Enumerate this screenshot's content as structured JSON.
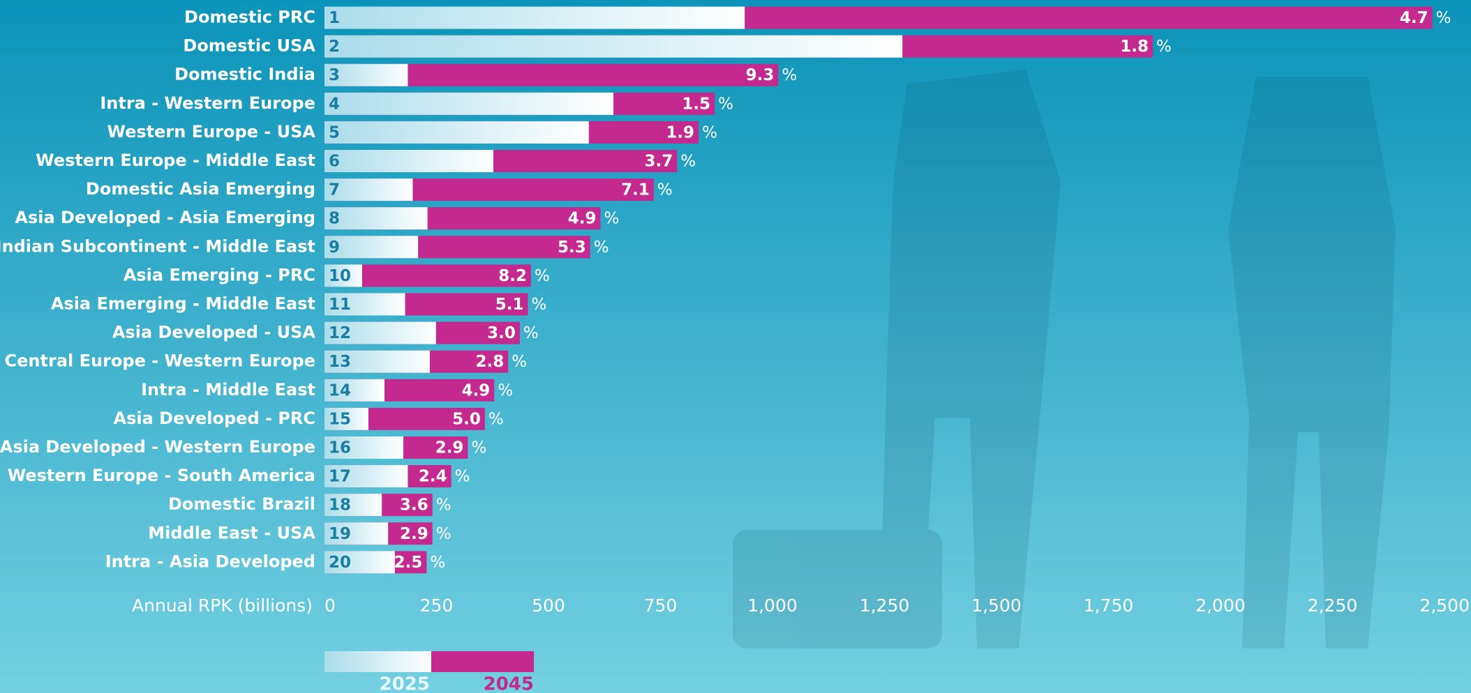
{
  "chart_data": {
    "type": "bar",
    "orientation": "horizontal",
    "overlap": true,
    "categories": [
      "Domestic PRC",
      "Domestic USA",
      "Domestic India",
      "Intra - Western Europe",
      "Western Europe - USA",
      "Western Europe - Middle East",
      "Domestic Asia Emerging",
      "Asia Developed - Asia Emerging",
      "Indian Subcontinent - Middle East",
      "Asia Emerging - PRC",
      "Asia Emerging - Middle East",
      "Asia Developed - USA",
      "Central Europe - Western Europe",
      "Intra - Middle East",
      "Asia Developed - PRC",
      "Asia Developed - Western Europe",
      "Western Europe - South America",
      "Domestic Brazil",
      "Middle East - USA",
      "Intra - Asia Developed"
    ],
    "ranks": [
      1,
      2,
      3,
      4,
      5,
      6,
      7,
      8,
      9,
      10,
      11,
      12,
      13,
      14,
      15,
      16,
      17,
      18,
      19,
      20
    ],
    "series": [
      {
        "name": "2025",
        "color": "#ffffff",
        "values": [
          938,
          1290,
          186,
          645,
          590,
          377,
          197,
          230,
          209,
          84,
          180,
          249,
          235,
          134,
          98,
          176,
          186,
          128,
          142,
          157
        ]
      },
      {
        "name": "2045",
        "color": "#c3298f",
        "values": [
          2473,
          1849,
          1013,
          871,
          835,
          787,
          735,
          616,
          593,
          461,
          454,
          436,
          410,
          379,
          358,
          320,
          283,
          241,
          241,
          228
        ]
      }
    ],
    "growth": {
      "values": [
        4.7,
        1.8,
        9.3,
        1.5,
        1.9,
        3.7,
        7.1,
        4.9,
        5.3,
        8.2,
        5.1,
        3.0,
        2.8,
        4.9,
        5.0,
        2.9,
        2.4,
        3.6,
        2.9,
        2.5
      ],
      "value_labels": [
        "4.7",
        "1.8",
        "9.3",
        "1.5",
        "1.9",
        "3.7",
        "7.1",
        "4.9",
        "5.3",
        "8.2",
        "5.1",
        "3.0",
        "2.8",
        "4.9",
        "5.0",
        "2.9",
        "2.4",
        "3.6",
        "2.9",
        "2.5"
      ],
      "unit": "%"
    },
    "xlabel": "Annual RPK (billions)",
    "xlim": [
      0,
      2500
    ],
    "xticks": [
      0,
      250,
      500,
      750,
      {
        "value": 1000,
        "label": "1,000"
      },
      {
        "value": 1250,
        "label": "1,250"
      },
      {
        "value": 1500,
        "label": "1,500"
      },
      {
        "value": 1750,
        "label": "1,750"
      },
      {
        "value": 2000,
        "label": "2,000"
      },
      {
        "value": 2250,
        "label": "2,250"
      },
      {
        "value": 2500,
        "label": "2,500"
      }
    ]
  }
}
